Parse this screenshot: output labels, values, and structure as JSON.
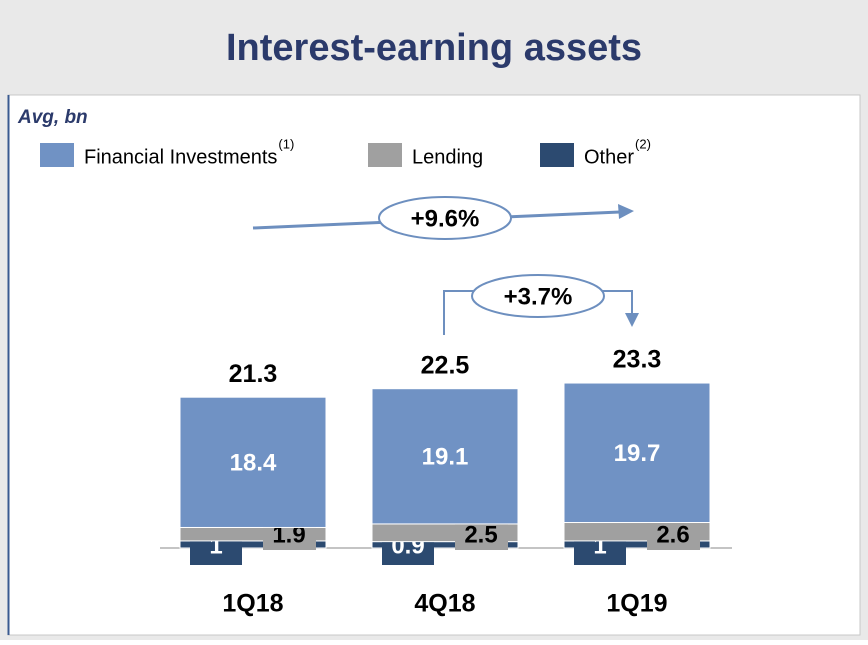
{
  "chart_data": {
    "type": "stacked_bar",
    "title": "Interest-earning assets",
    "subtitle": "Avg, bn",
    "categories": [
      "1Q18",
      "4Q18",
      "1Q19"
    ],
    "series": [
      {
        "name": "Financial Investments",
        "note": "(1)",
        "color": "#7092c4",
        "values": [
          18.4,
          19.1,
          19.7
        ]
      },
      {
        "name": "Lending",
        "color": "#a0a0a0",
        "values": [
          1.9,
          2.5,
          2.6
        ]
      },
      {
        "name": "Other",
        "note": "(2)",
        "color": "#2c4a70",
        "values": [
          1.0,
          0.9,
          1.0
        ]
      }
    ],
    "totals": [
      21.3,
      22.5,
      23.3
    ],
    "ylim": [
      0,
      25
    ],
    "annotations": [
      "+9.6%",
      "+3.7%"
    ]
  }
}
